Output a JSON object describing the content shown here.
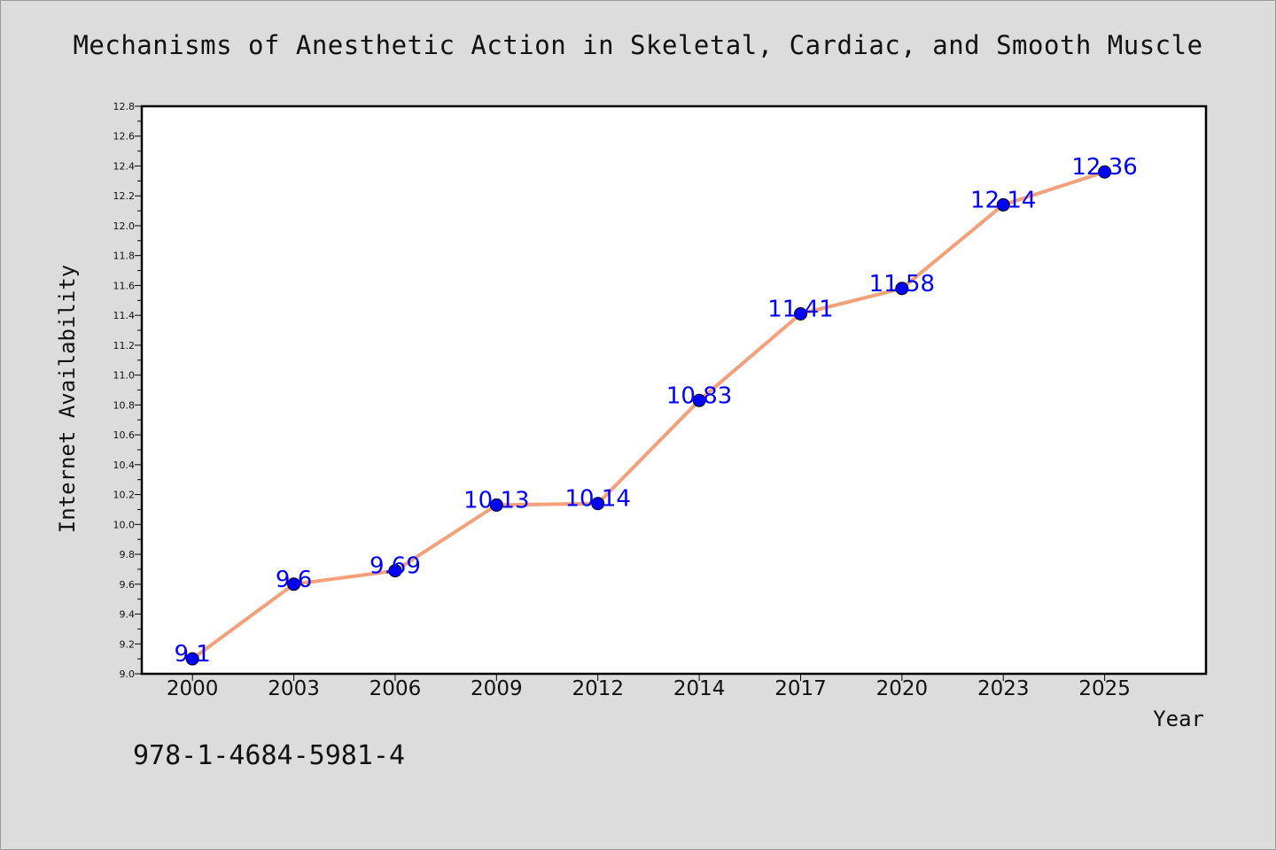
{
  "title": "Mechanisms of Anesthetic Action in Skeletal, Cardiac, and Smooth Muscle",
  "isbn": "978-1-4684-5981-4",
  "chart_data": {
    "type": "line",
    "title": "Mechanisms of Anesthetic Action in Skeletal, Cardiac, and Smooth Muscle",
    "xlabel": "Year",
    "ylabel": "Internet Availability",
    "categories": [
      "2000",
      "2003",
      "2006",
      "2009",
      "2012",
      "2014",
      "2017",
      "2020",
      "2023",
      "2025"
    ],
    "values": [
      9.1,
      9.6,
      9.69,
      10.13,
      10.14,
      10.83,
      11.41,
      11.58,
      12.14,
      12.36
    ],
    "data_labels": [
      "9.1",
      "9.6",
      "9.69",
      "10.13",
      "10.14",
      "10.83",
      "11.41",
      "11.58",
      "12.14",
      "12.36"
    ],
    "ylim": [
      9.0,
      12.8
    ],
    "yticks": [
      "9.0",
      "9.2",
      "9.4",
      "9.6",
      "9.8",
      "10.0",
      "10.2",
      "10.4",
      "10.6",
      "10.8",
      "11.0",
      "11.2",
      "11.4",
      "11.6",
      "11.8",
      "12.0",
      "12.2",
      "12.4",
      "12.6",
      "12.8"
    ],
    "grid": false,
    "legend": "none",
    "line_color": "#f4a07a",
    "marker_color": "#0000ff",
    "label_color": "#0000ff"
  }
}
